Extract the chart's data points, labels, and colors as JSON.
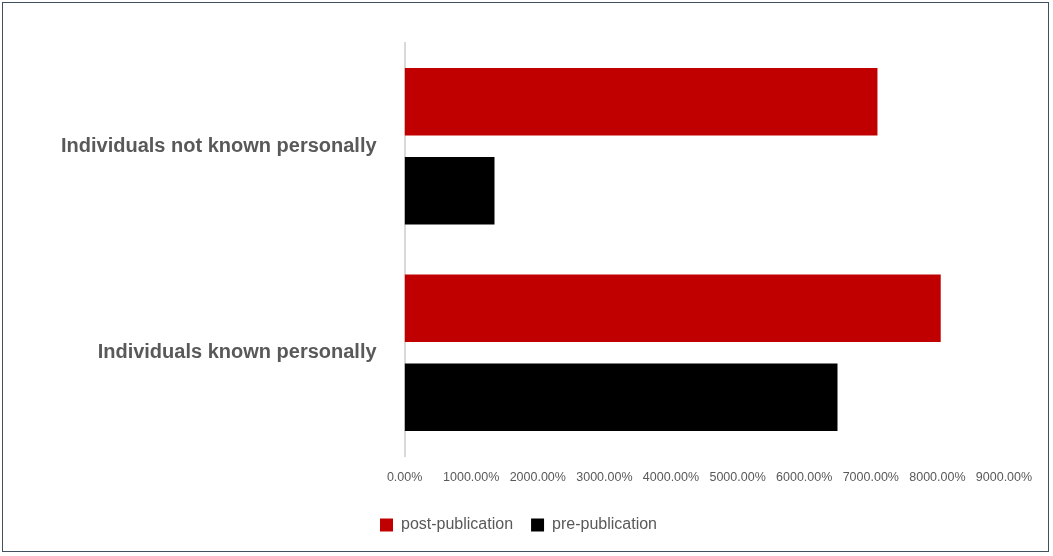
{
  "chart_data": {
    "type": "bar",
    "orientation": "horizontal",
    "categories": [
      "Individuals not known personally",
      "Individuals known personally"
    ],
    "series": [
      {
        "name": "post-publication",
        "color": "#c00000",
        "values": [
          7100,
          8050
        ]
      },
      {
        "name": "pre-publication",
        "color": "#000000",
        "values": [
          1350,
          6500
        ]
      }
    ],
    "xlim": [
      0,
      9000
    ],
    "xticks": [
      {
        "value": 0,
        "label": "0.00%"
      },
      {
        "value": 1000,
        "label": "1000.00%"
      },
      {
        "value": 2000,
        "label": "2000.00%"
      },
      {
        "value": 3000,
        "label": "3000.00%"
      },
      {
        "value": 4000,
        "label": "4000.00%"
      },
      {
        "value": 5000,
        "label": "5000.00%"
      },
      {
        "value": 6000,
        "label": "6000.00%"
      },
      {
        "value": 7000,
        "label": "7000.00%"
      },
      {
        "value": 8000,
        "label": "8000.00%"
      },
      {
        "value": 9000,
        "label": "9000.00%"
      }
    ],
    "grid": false,
    "legend": "bottom"
  }
}
